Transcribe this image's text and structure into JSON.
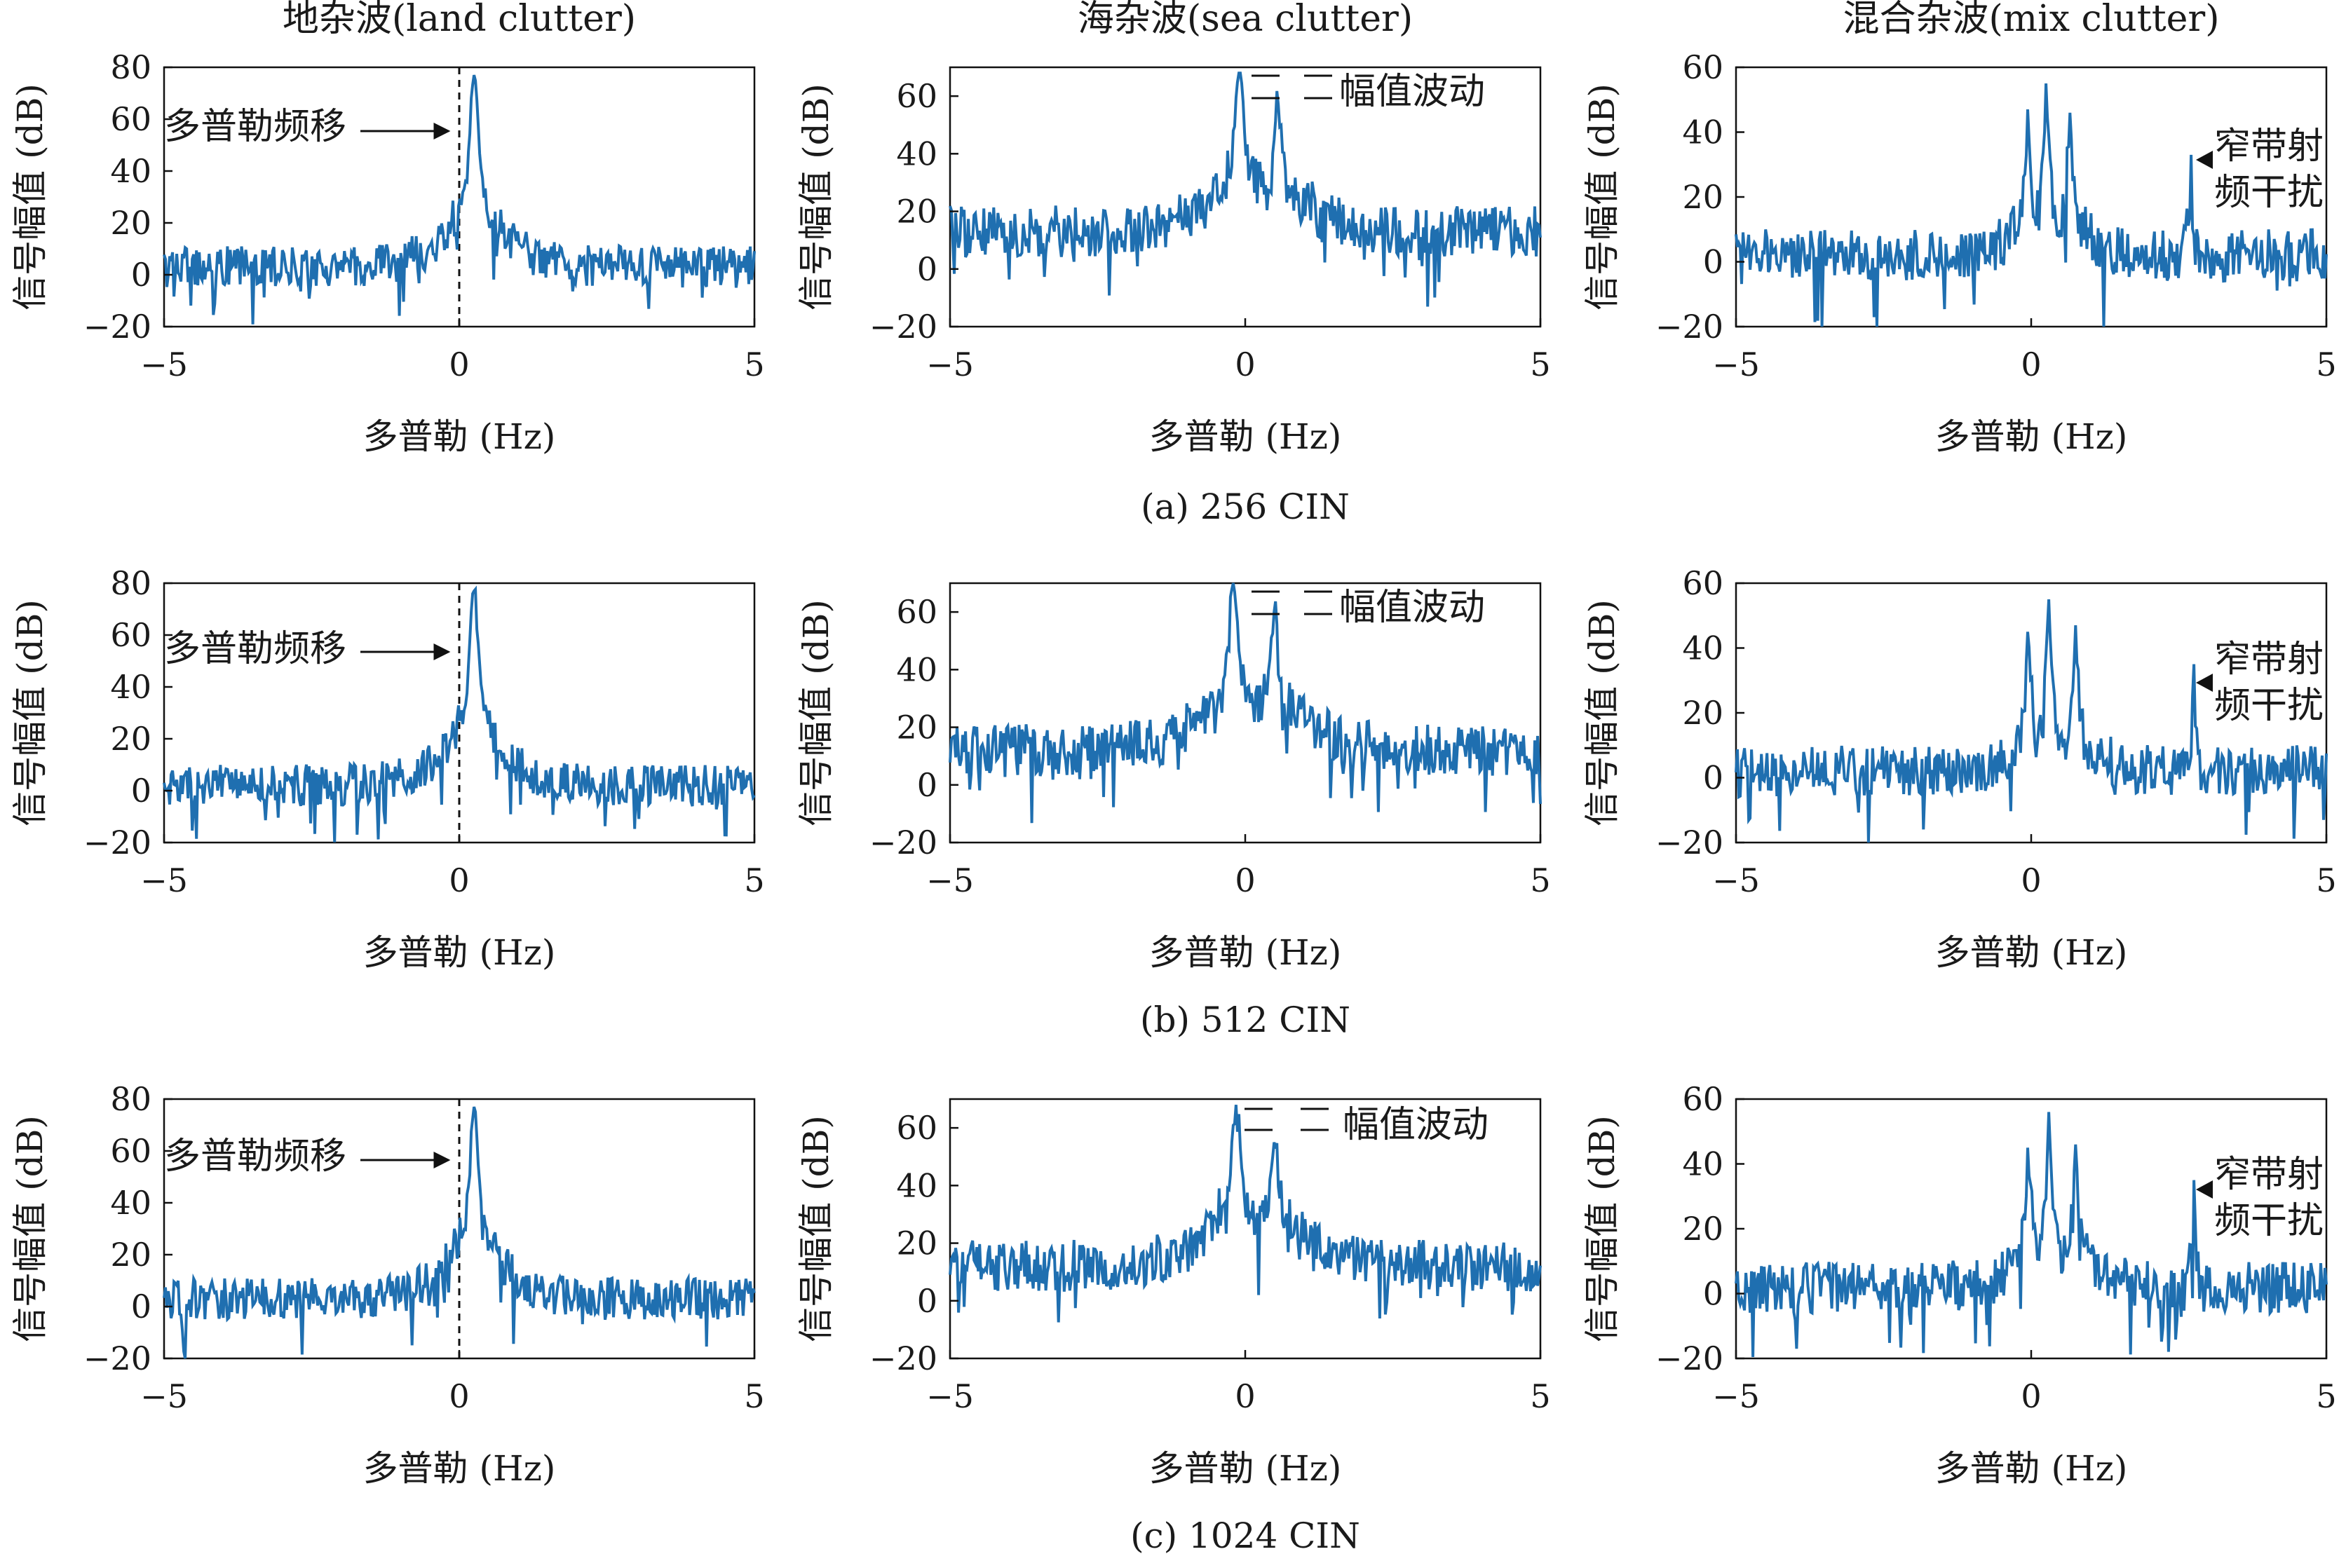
{
  "columns": [
    {
      "title": "地杂波(land clutter)",
      "annotation": "多普勒频移",
      "ylim": [
        -20,
        80
      ],
      "yticks": [
        "80",
        "60",
        "40",
        "20",
        "0",
        "−20"
      ]
    },
    {
      "title": "海杂波(sea clutter)",
      "annotation": "幅值波动",
      "ylim": [
        -20,
        70
      ],
      "yticks": [
        "60",
        "40",
        "20",
        "0",
        "−20"
      ]
    },
    {
      "title": "混合杂波(mix clutter)",
      "annotation_line1": "窄带射",
      "annotation_line2": "频干扰",
      "ylim": [
        -20,
        60
      ],
      "yticks": [
        "60",
        "40",
        "20",
        "0",
        "−20"
      ]
    }
  ],
  "rows": [
    {
      "caption": "(a) 256 CIN"
    },
    {
      "caption": "(b) 512 CIN"
    },
    {
      "caption": "(c) 1024 CIN"
    }
  ],
  "xlabel": "多普勒 (Hz)",
  "ylabel": "信号幅值 (dB)",
  "xticks": [
    "−5",
    "0",
    "5"
  ],
  "line_color": "#1f6fb0",
  "chart_data": [
    {
      "type": "line",
      "panel": "a-land",
      "title": "地杂波(land clutter)",
      "xlim": [
        -5,
        5
      ],
      "ylim": [
        -20,
        80
      ],
      "noise_floor": 3,
      "peaks": [
        {
          "x": 0.25,
          "y": 77
        }
      ],
      "dashed_vline_x": 0
    },
    {
      "type": "line",
      "panel": "a-sea",
      "title": "海杂波(sea clutter)",
      "xlim": [
        -5,
        5
      ],
      "ylim": [
        -20,
        70
      ],
      "noise_floor": 13,
      "peaks": [
        {
          "x": -0.1,
          "y": 68
        },
        {
          "x": 0.55,
          "y": 57
        }
      ]
    },
    {
      "type": "line",
      "panel": "a-mix",
      "title": "混合杂波(mix clutter)",
      "xlim": [
        -5,
        5
      ],
      "ylim": [
        -20,
        60
      ],
      "noise_floor": 2,
      "peaks": [
        {
          "x": -0.05,
          "y": 47
        },
        {
          "x": 0.25,
          "y": 55
        },
        {
          "x": 0.65,
          "y": 46
        },
        {
          "x": 2.7,
          "y": 33
        }
      ]
    },
    {
      "type": "line",
      "panel": "b-land",
      "xlim": [
        -5,
        5
      ],
      "ylim": [
        -20,
        80
      ],
      "noise_floor": 2,
      "peaks": [
        {
          "x": 0.25,
          "y": 77
        }
      ],
      "dashed_vline_x": 0
    },
    {
      "type": "line",
      "panel": "b-sea",
      "xlim": [
        -5,
        5
      ],
      "ylim": [
        -20,
        70
      ],
      "noise_floor": 12,
      "peaks": [
        {
          "x": -0.2,
          "y": 70
        },
        {
          "x": 0.5,
          "y": 60
        }
      ]
    },
    {
      "type": "line",
      "panel": "b-mix",
      "xlim": [
        -5,
        5
      ],
      "ylim": [
        -20,
        60
      ],
      "noise_floor": 2,
      "peaks": [
        {
          "x": -0.05,
          "y": 45
        },
        {
          "x": 0.3,
          "y": 55
        },
        {
          "x": 0.75,
          "y": 47
        },
        {
          "x": 2.75,
          "y": 35
        }
      ]
    },
    {
      "type": "line",
      "panel": "c-land",
      "xlim": [
        -5,
        5
      ],
      "ylim": [
        -20,
        80
      ],
      "noise_floor": 3,
      "peaks": [
        {
          "x": 0.25,
          "y": 77
        }
      ],
      "dashed_vline_x": 0
    },
    {
      "type": "line",
      "panel": "c-sea",
      "xlim": [
        -5,
        5
      ],
      "ylim": [
        -20,
        70
      ],
      "noise_floor": 12,
      "peaks": [
        {
          "x": -0.15,
          "y": 68
        },
        {
          "x": 0.5,
          "y": 55
        }
      ]
    },
    {
      "type": "line",
      "panel": "c-mix",
      "xlim": [
        -5,
        5
      ],
      "ylim": [
        -20,
        60
      ],
      "noise_floor": 2,
      "peaks": [
        {
          "x": -0.05,
          "y": 45
        },
        {
          "x": 0.3,
          "y": 56
        },
        {
          "x": 0.75,
          "y": 46
        },
        {
          "x": 2.75,
          "y": 35
        }
      ]
    }
  ]
}
